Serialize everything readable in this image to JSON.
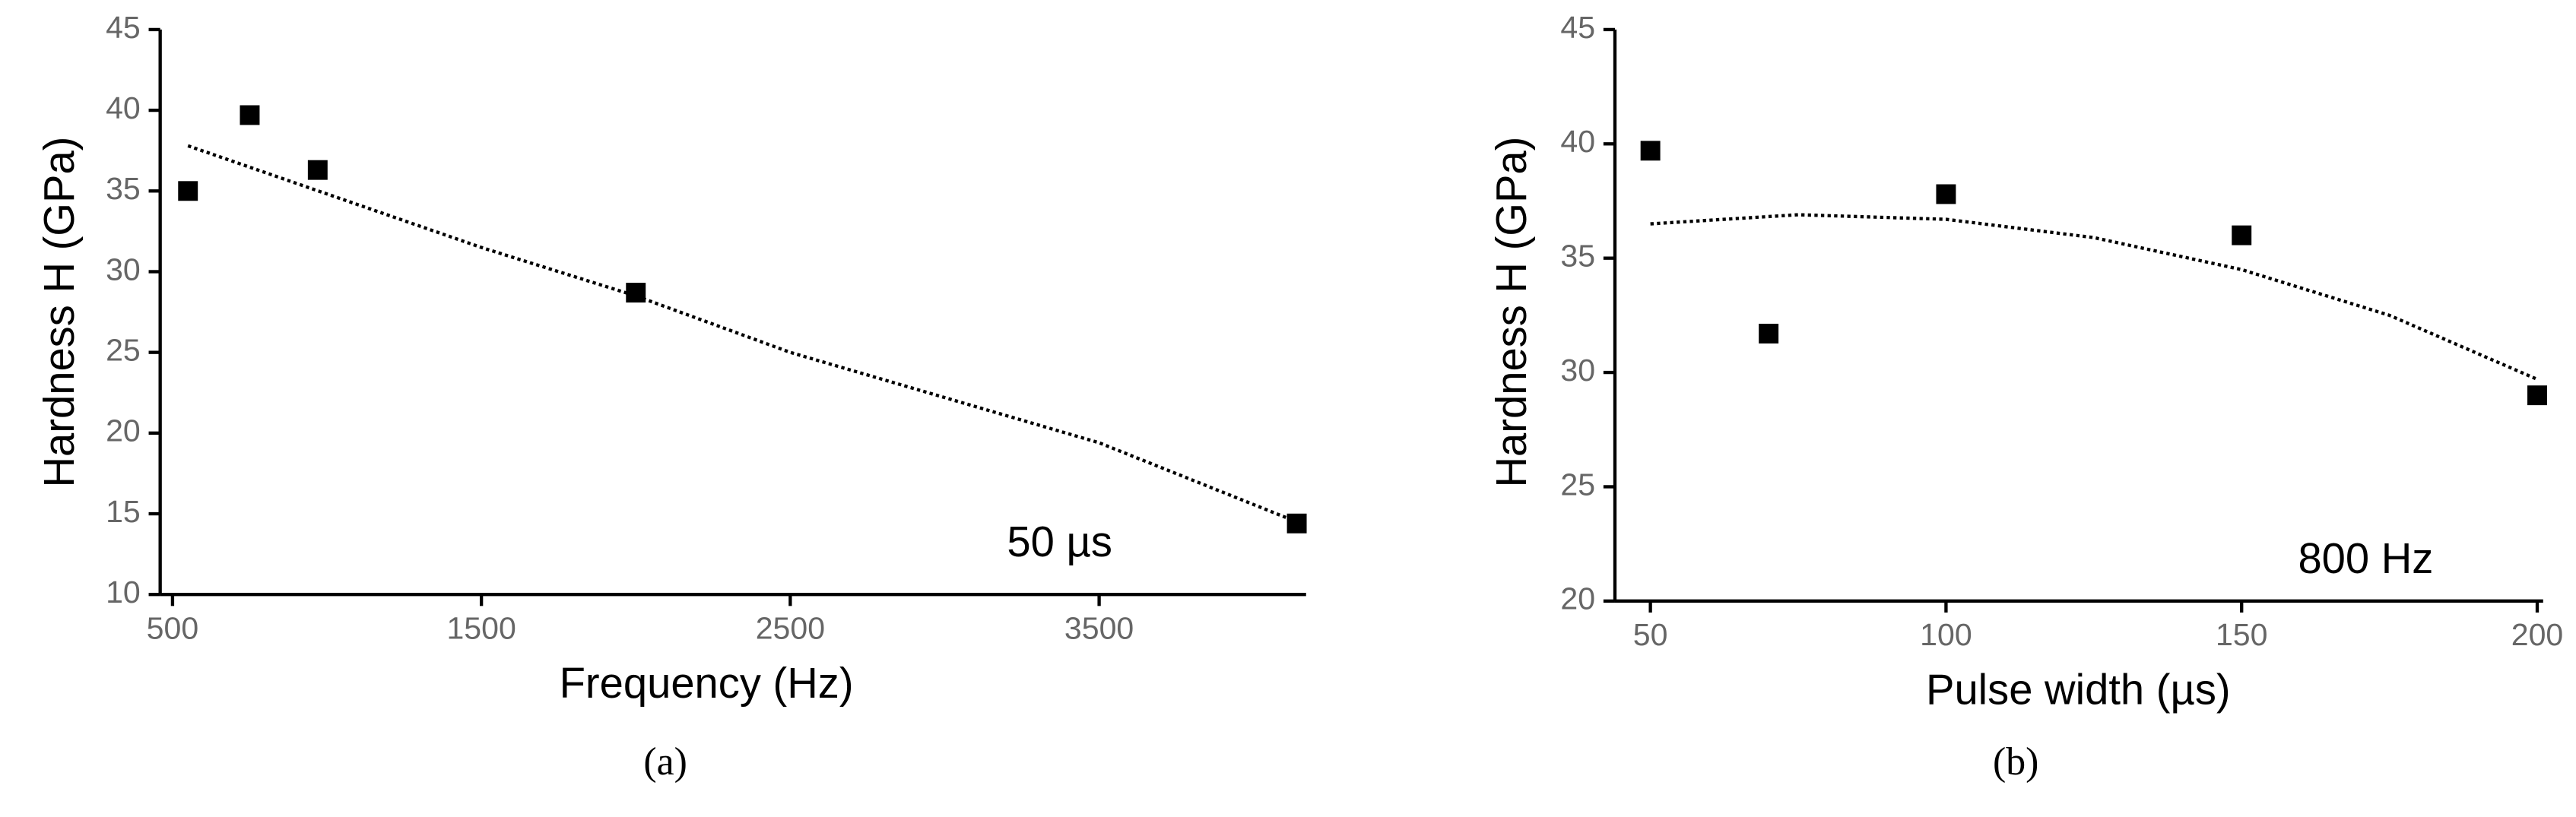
{
  "chart_data": [
    {
      "type": "scatter",
      "caption": "(a)",
      "x_label": "Frequency (Hz)",
      "y_label": "Hardness H (GPa)",
      "annotation": "50 µs",
      "xlim": [
        460,
        4170
      ],
      "xticks": [
        500,
        1500,
        2500,
        3500
      ],
      "ylim": [
        10,
        45
      ],
      "yticks": [
        10,
        15,
        20,
        25,
        30,
        35,
        40,
        45
      ],
      "series": [
        {
          "color": "#000000",
          "x": [
            550,
            750,
            970,
            2000,
            4140
          ],
          "values": [
            35.0,
            39.7,
            36.3,
            28.7,
            14.4
          ]
        },
        {
          "color": "#000000",
          "style": "dotted",
          "x": [
            550,
            1500,
            2000,
            2500,
            3500,
            4140
          ],
          "values": [
            37.8,
            31.5,
            28.5,
            25.0,
            19.4,
            14.5
          ]
        }
      ]
    },
    {
      "type": "scatter",
      "caption": "(b)",
      "x_label": "Pulse width (µs)",
      "y_label": "Hardness H (GPa)",
      "annotation": "800 Hz",
      "xlim": [
        44,
        201
      ],
      "xticks": [
        50,
        100,
        150,
        200
      ],
      "ylim": [
        20,
        45
      ],
      "yticks": [
        20,
        25,
        30,
        35,
        40,
        45
      ],
      "series": [
        {
          "color": "#000000",
          "x": [
            50,
            70,
            100,
            150,
            200
          ],
          "values": [
            39.7,
            31.7,
            37.8,
            36.0,
            29.0
          ]
        },
        {
          "color": "#000000",
          "style": "dotted",
          "x": [
            50,
            75,
            100,
            125,
            150,
            175,
            200
          ],
          "values": [
            36.5,
            36.9,
            36.7,
            35.9,
            34.5,
            32.5,
            29.7
          ]
        }
      ]
    }
  ]
}
